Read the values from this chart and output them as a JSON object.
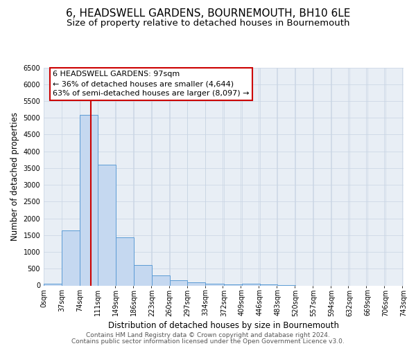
{
  "title": "6, HEADSWELL GARDENS, BOURNEMOUTH, BH10 6LE",
  "subtitle": "Size of property relative to detached houses in Bournemouth",
  "xlabel": "Distribution of detached houses by size in Bournemouth",
  "ylabel": "Number of detached properties",
  "bar_edges": [
    0,
    37,
    74,
    111,
    149,
    186,
    223,
    260,
    297,
    334,
    372,
    409,
    446,
    483,
    520,
    557,
    594,
    632,
    669,
    706,
    743
  ],
  "bar_heights": [
    50,
    1650,
    5080,
    3600,
    1430,
    610,
    300,
    145,
    100,
    60,
    40,
    50,
    30,
    20,
    0,
    0,
    0,
    0,
    0,
    0
  ],
  "bar_color": "#c5d8f0",
  "bar_edge_color": "#5b9bd5",
  "property_line_x": 97,
  "property_line_color": "#cc0000",
  "annotation_line1": "6 HEADSWELL GARDENS: 97sqm",
  "annotation_line2": "← 36% of detached houses are smaller (4,644)",
  "annotation_line3": "63% of semi-detached houses are larger (8,097) →",
  "annotation_box_edge_color": "#cc0000",
  "annotation_box_facecolor": "#ffffff",
  "ylim": [
    0,
    6500
  ],
  "yticks": [
    0,
    500,
    1000,
    1500,
    2000,
    2500,
    3000,
    3500,
    4000,
    4500,
    5000,
    5500,
    6000,
    6500
  ],
  "tick_labels": [
    "0sqm",
    "37sqm",
    "74sqm",
    "111sqm",
    "149sqm",
    "186sqm",
    "223sqm",
    "260sqm",
    "297sqm",
    "334sqm",
    "372sqm",
    "409sqm",
    "446sqm",
    "483sqm",
    "520sqm",
    "557sqm",
    "594sqm",
    "632sqm",
    "669sqm",
    "706sqm",
    "743sqm"
  ],
  "footer_line1": "Contains HM Land Registry data © Crown copyright and database right 2024.",
  "footer_line2": "Contains public sector information licensed under the Open Government Licence v3.0.",
  "background_color": "#ffffff",
  "plot_bg_color": "#e8eef5",
  "grid_color": "#c8d4e3",
  "title_fontsize": 11,
  "subtitle_fontsize": 9.5,
  "axis_label_fontsize": 8.5,
  "tick_fontsize": 7,
  "annotation_fontsize": 8,
  "footer_fontsize": 6.5
}
